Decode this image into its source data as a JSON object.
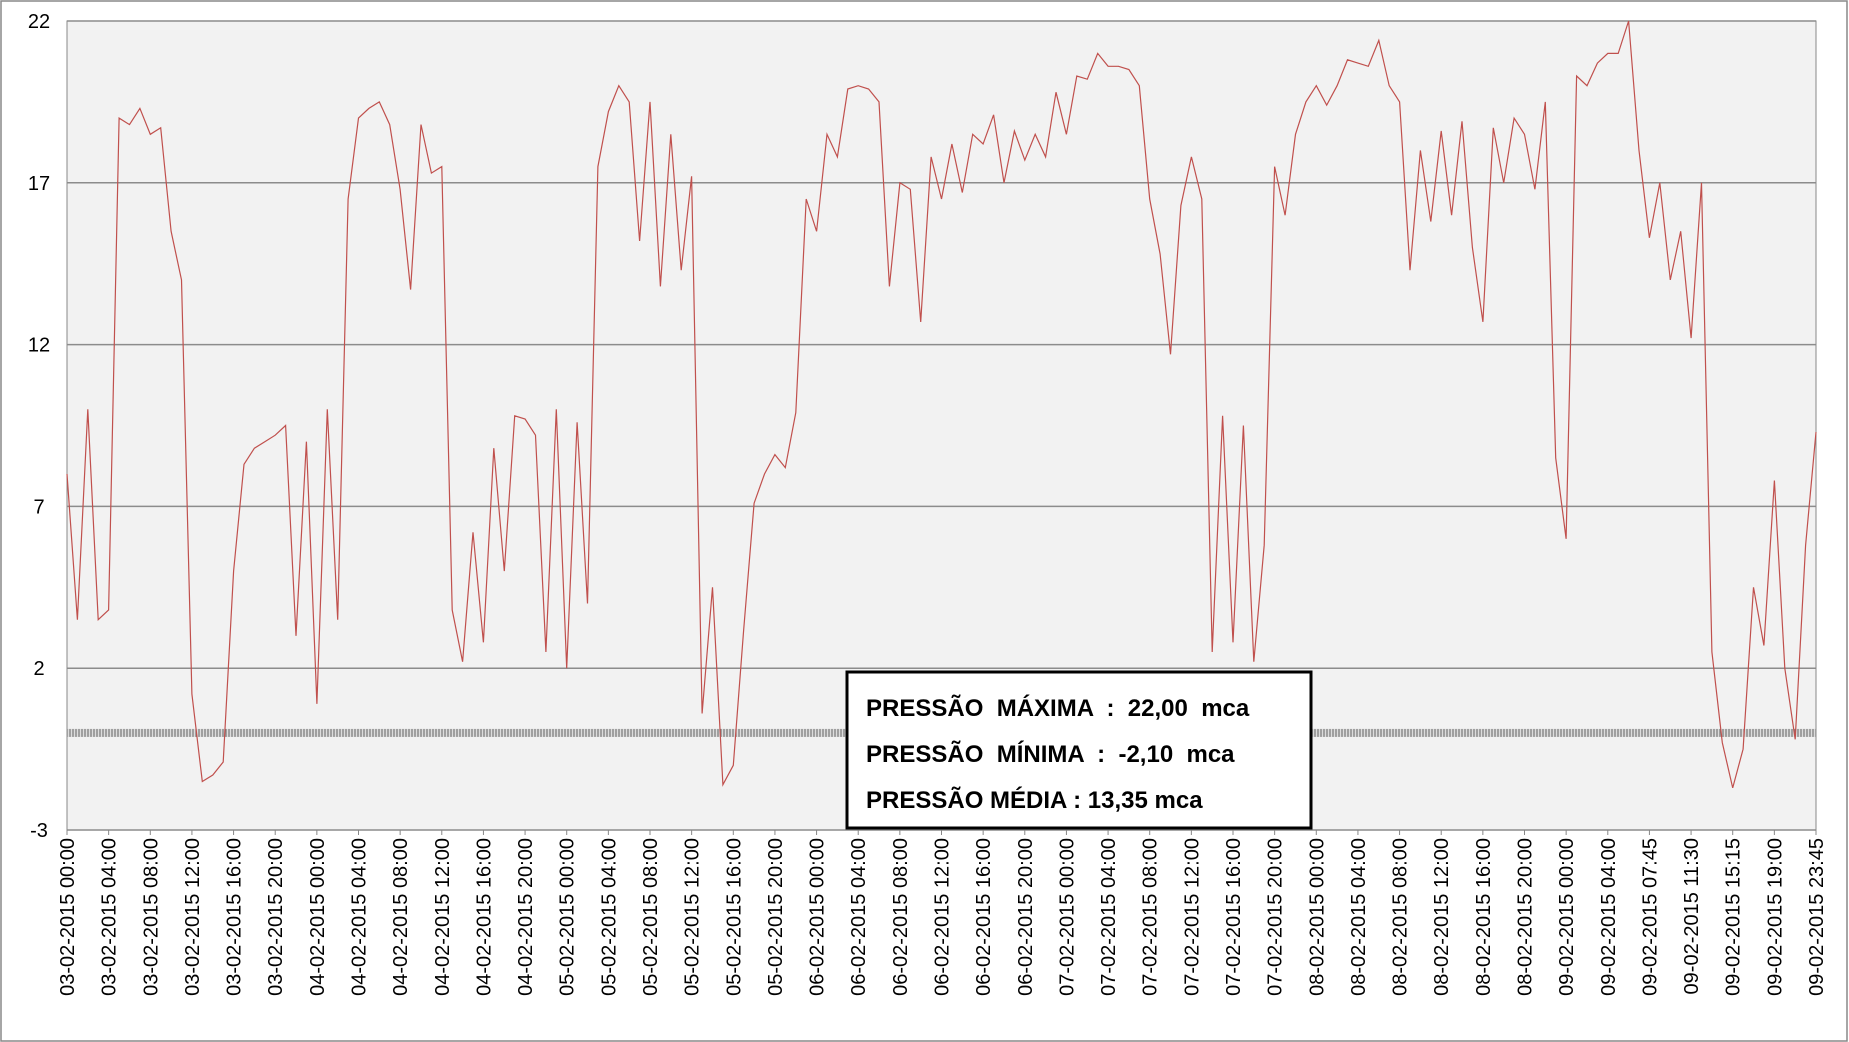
{
  "chart_data": {
    "type": "line",
    "categories": [
      "03-02-2015 00:00",
      null,
      null,
      null,
      "03-02-2015 04:00",
      null,
      null,
      null,
      "03-02-2015 08:00",
      null,
      null,
      null,
      "03-02-2015 12:00",
      null,
      null,
      null,
      "03-02-2015 16:00",
      null,
      null,
      null,
      "03-02-2015 20:00",
      null,
      null,
      null,
      "04-02-2015 00:00",
      null,
      null,
      null,
      "04-02-2015 04:00",
      null,
      null,
      null,
      "04-02-2015 08:00",
      null,
      null,
      null,
      "04-02-2015 12:00",
      null,
      null,
      null,
      "04-02-2015 16:00",
      null,
      null,
      null,
      "04-02-2015 20:00",
      null,
      null,
      null,
      "05-02-2015 00:00",
      null,
      null,
      null,
      "05-02-2015 04:00",
      null,
      null,
      null,
      "05-02-2015 08:00",
      null,
      null,
      null,
      "05-02-2015 12:00",
      null,
      null,
      null,
      "05-02-2015 16:00",
      null,
      null,
      null,
      "05-02-2015 20:00",
      null,
      null,
      null,
      "06-02-2015 00:00",
      null,
      null,
      null,
      "06-02-2015 04:00",
      null,
      null,
      null,
      "06-02-2015 08:00",
      null,
      null,
      null,
      "06-02-2015 12:00",
      null,
      null,
      null,
      "06-02-2015 16:00",
      null,
      null,
      null,
      "06-02-2015 20:00",
      null,
      null,
      null,
      "07-02-2015 00:00",
      null,
      null,
      null,
      "07-02-2015 04:00",
      null,
      null,
      null,
      "07-02-2015 08:00",
      null,
      null,
      null,
      "07-02-2015 12:00",
      null,
      null,
      null,
      "07-02-2015 16:00",
      null,
      null,
      null,
      "07-02-2015 20:00",
      null,
      null,
      null,
      "08-02-2015 00:00",
      null,
      null,
      null,
      "08-02-2015 04:00",
      null,
      null,
      null,
      "08-02-2015 08:00",
      null,
      null,
      null,
      "08-02-2015 12:00",
      null,
      null,
      null,
      "08-02-2015 16:00",
      null,
      null,
      null,
      "08-02-2015 20:00",
      null,
      null,
      null,
      "09-02-2015 00:00",
      null,
      null,
      null,
      "09-02-2015 04:00",
      null,
      null,
      null,
      "09-02-2015 07:45",
      null,
      null,
      null,
      "09-02-2015 11:30",
      null,
      null,
      null,
      "09-02-2015 15:15",
      null,
      null,
      null,
      "09-02-2015 19:00",
      null,
      null,
      null,
      "09-02-2015 23:45"
    ],
    "series": [
      {
        "color": "#c0504d",
        "values": [
          8,
          3.5,
          10,
          3.5,
          3.8,
          19,
          18.8,
          19.3,
          18.5,
          18.7,
          15.5,
          14,
          1.2,
          -1.5,
          -1.3,
          -0.9,
          5,
          8.3,
          8.8,
          9,
          9.2,
          9.5,
          3,
          9,
          0.9,
          10,
          3.5,
          16.5,
          19,
          19.3,
          19.5,
          18.8,
          16.8,
          13.7,
          18.8,
          17.3,
          17.5,
          3.8,
          2.2,
          6.2,
          2.8,
          8.8,
          5,
          9.8,
          9.7,
          9.2,
          2.5,
          10,
          2,
          9.6,
          4,
          17.5,
          19.2,
          20,
          19.5,
          15.2,
          19.5,
          13.8,
          18.5,
          14.3,
          17.2,
          0.6,
          4.5,
          -1.6,
          -1,
          3.2,
          7.1,
          8,
          8.6,
          8.2,
          9.9,
          16.5,
          15.5,
          18.5,
          17.8,
          19.9,
          20,
          19.9,
          19.5,
          13.8,
          17,
          16.8,
          12.7,
          17.8,
          16.5,
          18.2,
          16.7,
          18.5,
          18.2,
          19.1,
          17,
          18.6,
          17.7,
          18.5,
          17.8,
          19.8,
          18.5,
          20.3,
          20.2,
          21,
          20.6,
          20.6,
          20.5,
          20,
          16.5,
          14.8,
          11.7,
          16.3,
          17.8,
          16.5,
          2.5,
          9.8,
          2.8,
          9.5,
          2.2,
          5.8,
          17.5,
          16,
          18.5,
          19.5,
          20,
          19.4,
          20,
          20.8,
          20.7,
          20.6,
          21.4,
          20,
          19.5,
          14.3,
          18,
          15.8,
          18.6,
          16,
          18.9,
          15,
          12.7,
          18.7,
          17,
          19,
          18.5,
          16.8,
          19.5,
          8.5,
          6,
          20.3,
          20,
          20.7,
          21,
          21,
          22,
          18,
          15.3,
          17,
          14,
          15.5,
          12.2,
          17,
          2.5,
          -0.3,
          -1.7,
          -0.5,
          4.5,
          2.7,
          7.8,
          2,
          -0.2,
          5.8,
          9.3
        ]
      }
    ],
    "ylim": [
      -3,
      22
    ],
    "yticks": [
      -3,
      2,
      7,
      12,
      17,
      22
    ],
    "grid": true,
    "reference_line": 0,
    "annotations": [
      "PRESSÃO  MÁXIMA  :  22,00  mca",
      "PRESSÃO  MÍNIMA  :  -2,10  mca",
      "PRESSÃO MÉDIA : 13,35 mca"
    ]
  }
}
